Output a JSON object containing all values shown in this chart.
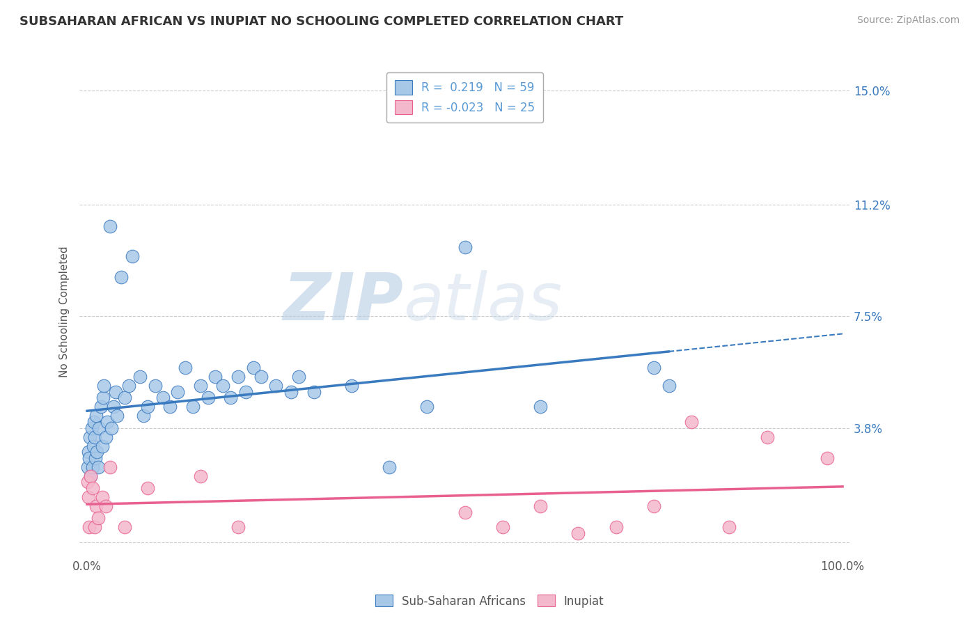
{
  "title": "SUBSAHARAN AFRICAN VS INUPIAT NO SCHOOLING COMPLETED CORRELATION CHART",
  "source": "Source: ZipAtlas.com",
  "ylabel": "No Schooling Completed",
  "xlabel": "",
  "xlim": [
    -1,
    101
  ],
  "ylim": [
    -0.5,
    15.8
  ],
  "yticks": [
    0,
    3.8,
    7.5,
    11.2,
    15.0
  ],
  "xticks": [
    0,
    20,
    40,
    60,
    80,
    100
  ],
  "xtick_labels": [
    "0.0%",
    "",
    "",
    "",
    "",
    "100.0%"
  ],
  "ytick_labels": [
    "",
    "3.8%",
    "7.5%",
    "11.2%",
    "15.0%"
  ],
  "blue_R": 0.219,
  "blue_N": 59,
  "pink_R": -0.023,
  "pink_N": 25,
  "blue_color": "#a8c8e8",
  "pink_color": "#f4b8cc",
  "blue_line_color": "#3a7abf",
  "pink_line_color": "#e86090",
  "watermark_zip": "ZIP",
  "watermark_atlas": "atlas",
  "background_color": "#ffffff",
  "grid_color": "#cccccc",
  "legend_text_color": "#5b9bd5",
  "blue_x": [
    0.1,
    0.2,
    0.3,
    0.4,
    0.5,
    0.6,
    0.7,
    0.8,
    0.9,
    1.0,
    1.1,
    1.2,
    1.3,
    1.5,
    1.6,
    1.8,
    2.0,
    2.1,
    2.2,
    2.5,
    2.7,
    3.0,
    3.2,
    3.5,
    3.8,
    4.0,
    4.5,
    5.0,
    5.5,
    6.0,
    7.0,
    7.5,
    8.0,
    9.0,
    10.0,
    11.0,
    12.0,
    13.0,
    14.0,
    15.0,
    16.0,
    17.0,
    18.0,
    19.0,
    20.0,
    21.0,
    22.0,
    23.0,
    25.0,
    27.0,
    28.0,
    30.0,
    35.0,
    40.0,
    45.0,
    50.0,
    60.0,
    75.0,
    77.0
  ],
  "blue_y": [
    2.5,
    3.0,
    2.8,
    3.5,
    2.2,
    3.8,
    2.5,
    3.2,
    4.0,
    3.5,
    2.8,
    4.2,
    3.0,
    2.5,
    3.8,
    4.5,
    3.2,
    4.8,
    5.2,
    3.5,
    4.0,
    10.5,
    3.8,
    4.5,
    5.0,
    4.2,
    8.8,
    4.8,
    5.2,
    9.5,
    5.5,
    4.2,
    4.5,
    5.2,
    4.8,
    4.5,
    5.0,
    5.8,
    4.5,
    5.2,
    4.8,
    5.5,
    5.2,
    4.8,
    5.5,
    5.0,
    5.8,
    5.5,
    5.2,
    5.0,
    5.5,
    5.0,
    5.2,
    2.5,
    4.5,
    9.8,
    4.5,
    5.8,
    5.2
  ],
  "pink_x": [
    0.1,
    0.2,
    0.3,
    0.5,
    0.7,
    1.0,
    1.2,
    1.5,
    2.0,
    2.5,
    3.0,
    5.0,
    8.0,
    15.0,
    20.0,
    50.0,
    55.0,
    60.0,
    65.0,
    70.0,
    75.0,
    80.0,
    85.0,
    90.0,
    98.0
  ],
  "pink_y": [
    2.0,
    1.5,
    0.5,
    2.2,
    1.8,
    0.5,
    1.2,
    0.8,
    1.5,
    1.2,
    2.5,
    0.5,
    1.8,
    2.2,
    0.5,
    1.0,
    0.5,
    1.2,
    0.3,
    0.5,
    1.2,
    4.0,
    0.5,
    3.5,
    2.8
  ],
  "blue_solid_end": 77.0,
  "blue_trend_intercept": 2.8,
  "blue_trend_slope": 0.038,
  "pink_trend_intercept": 1.5,
  "pink_trend_slope": -0.002
}
